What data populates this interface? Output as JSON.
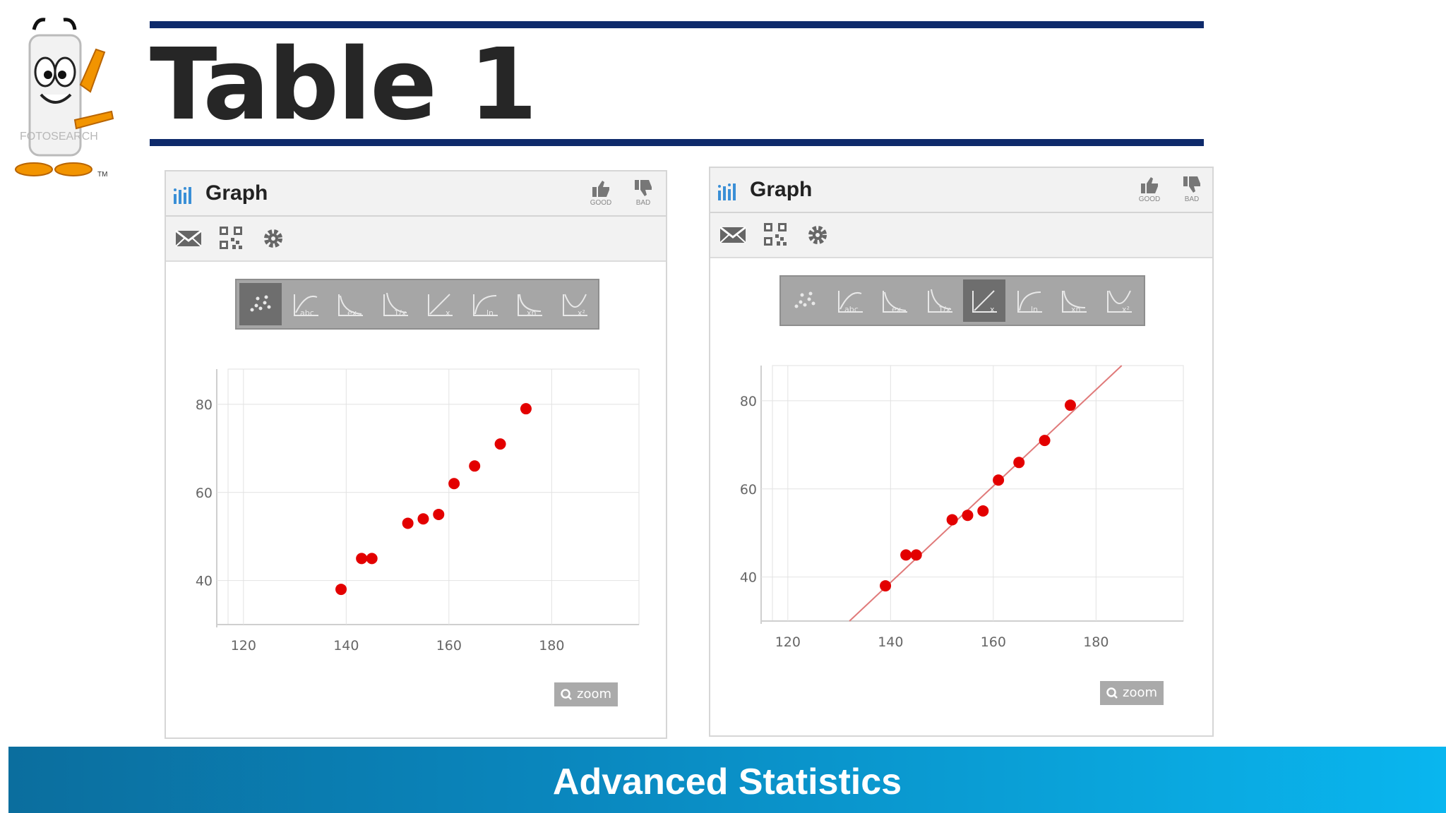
{
  "slide": {
    "title": "Table 1",
    "footer": "Advanced Statistics",
    "mascot_text": "FOTOSEARCH",
    "mascot_tm": "TM"
  },
  "panels": [
    {
      "title": "Graph",
      "good_label": "GOOD",
      "bad_label": "BAD",
      "zoom_label": "zoom",
      "selected_tool": 0,
      "trendline": false
    },
    {
      "title": "Graph",
      "good_label": "GOOD",
      "bad_label": "BAD",
      "zoom_label": "zoom",
      "selected_tool": 4,
      "trendline": true
    }
  ],
  "palette_icons": [
    "scatter-icon",
    "polynomial-abc-icon",
    "exponential-icon",
    "inverse-icon",
    "linear-icon",
    "logarithmic-icon",
    "power-icon",
    "quadratic-icon"
  ],
  "colors": {
    "point": "#e30000",
    "trendline": "#e07a7a",
    "rule": "#0e2a6b"
  },
  "chart_data": [
    {
      "type": "scatter",
      "x_ticks": [
        120,
        140,
        160,
        180
      ],
      "y_ticks": [
        40,
        60,
        80
      ],
      "xlim": [
        117,
        197
      ],
      "ylim": [
        30,
        88
      ],
      "grid": true,
      "series": [
        {
          "x": [
            139,
            143,
            145,
            152,
            155,
            158,
            161,
            165,
            170,
            175
          ],
          "y": [
            38,
            45,
            45,
            53,
            54,
            55,
            62,
            66,
            71,
            79
          ]
        }
      ]
    },
    {
      "type": "scatter",
      "x_ticks": [
        120,
        140,
        160,
        180
      ],
      "y_ticks": [
        40,
        60,
        80
      ],
      "xlim": [
        117,
        197
      ],
      "ylim": [
        30,
        88
      ],
      "grid": true,
      "trendline": {
        "x": [
          132,
          185
        ],
        "y": [
          30,
          88
        ]
      },
      "series": [
        {
          "x": [
            139,
            143,
            145,
            152,
            155,
            158,
            161,
            165,
            170,
            175
          ],
          "y": [
            38,
            45,
            45,
            53,
            54,
            55,
            62,
            66,
            71,
            79
          ]
        }
      ]
    }
  ]
}
